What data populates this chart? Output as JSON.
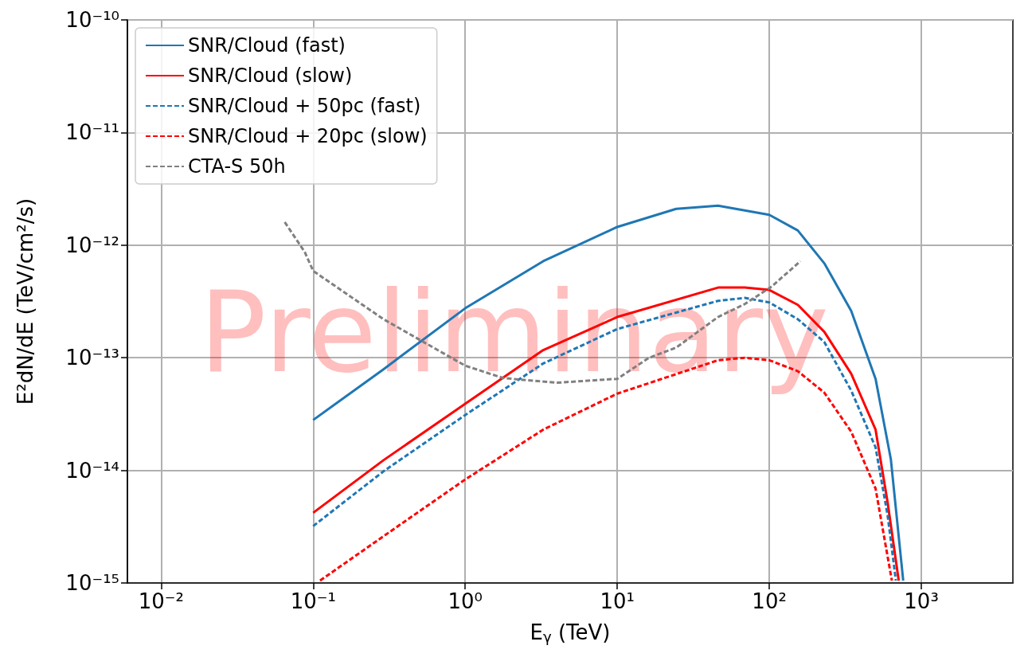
{
  "chart_data": {
    "type": "line",
    "xlabel": "E$_{γ}$ (TeV)",
    "ylabel": "E²dN/dE (TeV/cm²/s)",
    "log": "xy",
    "grid": true,
    "legend": "top left",
    "marker": "none",
    "xlim": [
      0.006,
      4000
    ],
    "xticks": [
      {
        "value": 0.01,
        "label": "10⁻²"
      },
      {
        "value": 0.1,
        "label": "10⁻¹"
      },
      {
        "value": 1,
        "label": "10⁰"
      },
      {
        "value": 10,
        "label": "10¹"
      },
      {
        "value": 100,
        "label": "10²"
      },
      {
        "value": 1000,
        "label": "10³"
      }
    ],
    "ylim": [
      1e-15,
      1e-10
    ],
    "yticks": [
      {
        "value": 1e-15,
        "label": "10⁻¹⁵"
      },
      {
        "value": 1e-14,
        "label": "10⁻¹⁴"
      },
      {
        "value": 1e-13,
        "label": "10⁻¹³"
      },
      {
        "value": 1e-12,
        "label": "10⁻¹²"
      },
      {
        "value": 1e-11,
        "label": "10⁻¹¹"
      },
      {
        "value": 1e-10,
        "label": "10⁻¹⁰"
      }
    ],
    "annotations": [
      "Preliminary"
    ],
    "series": [
      {
        "name": "SNR/Cloud (fast)",
        "color": "#1f77b4",
        "line_style": "solid",
        "x": [
          0.1,
          0.29,
          1,
          3.26,
          10,
          24.4,
          46,
          100,
          154,
          230,
          346,
          500,
          630,
          760
        ],
        "values": [
          2.8e-14,
          7.9e-14,
          2.75e-13,
          7.2e-13,
          1.45e-12,
          2.1e-12,
          2.24e-12,
          1.86e-12,
          1.35e-12,
          6.9e-13,
          2.6e-13,
          6.5e-14,
          1.26e-14,
          1.05e-15
        ]
      },
      {
        "name": "SNR/Cloud (slow)",
        "color": "#ff0000",
        "line_style": "solid",
        "x": [
          0.1,
          0.29,
          1,
          3.26,
          10,
          46,
          69,
          100,
          154,
          230,
          346,
          500,
          600,
          710
        ],
        "values": [
          4.2e-15,
          1.23e-14,
          3.9e-14,
          1.17e-13,
          2.3e-13,
          4.2e-13,
          4.2e-13,
          4e-13,
          2.95e-13,
          1.7e-13,
          7.2e-14,
          2.3e-14,
          5.2e-15,
          1.05e-15
        ]
      },
      {
        "name": "SNR/Cloud + 50pc (fast)",
        "color": "#1f77b4",
        "line_style": "dashed",
        "x": [
          0.1,
          0.29,
          1,
          3.26,
          10,
          46,
          69,
          100,
          154,
          230,
          346,
          500,
          600,
          680
        ],
        "values": [
          3.2e-15,
          9.8e-15,
          3.1e-14,
          8.9e-14,
          1.8e-13,
          3.2e-13,
          3.4e-13,
          3.1e-13,
          2.2e-13,
          1.38e-13,
          5.1e-14,
          1.6e-14,
          4e-15,
          1.05e-15
        ]
      },
      {
        "name": "SNR/Cloud + 20pc (slow)",
        "color": "#ff0000",
        "line_style": "dashed",
        "x": [
          0.111,
          0.29,
          1,
          3.26,
          10,
          46,
          69,
          100,
          154,
          230,
          346,
          500,
          640
        ],
        "values": [
          1.05e-15,
          2.6e-15,
          8.3e-15,
          2.3e-14,
          4.8e-14,
          9.5e-14,
          1e-13,
          9.5e-14,
          7.6e-14,
          4.9e-14,
          2.2e-14,
          6.9e-15,
          1.05e-15
        ]
      },
      {
        "name": "CTA-S 50h",
        "color": "#808080",
        "line_style": "dashed",
        "x": [
          0.065,
          0.088,
          0.1,
          0.29,
          1,
          1.78,
          4.0,
          10,
          16.2,
          24.4,
          46,
          69,
          104,
          160
        ],
        "values": [
          1.6e-12,
          8.7e-13,
          5.9e-13,
          2.2e-13,
          8.5e-14,
          6.6e-14,
          6e-14,
          6.5e-14,
          1e-13,
          1.23e-13,
          2.3e-13,
          3e-13,
          4.3e-13,
          7.2e-13
        ]
      }
    ]
  }
}
